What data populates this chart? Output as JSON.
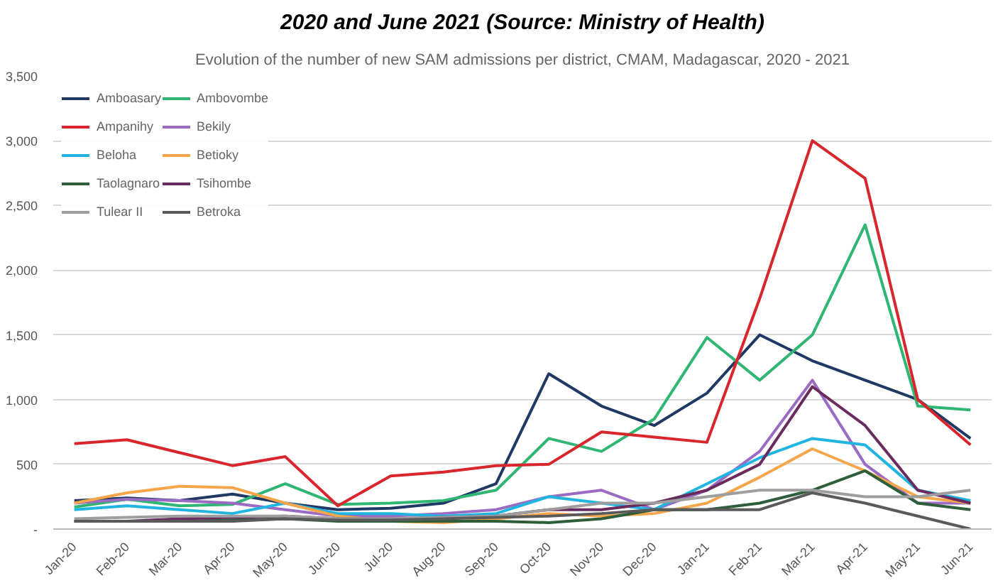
{
  "chart_data": {
    "type": "line",
    "title": "2020 and June 2021 (Source: Ministry of Health)",
    "subtitle": "Evolution of the number of new SAM admissions per district, CMAM, Madagascar, 2020 - 2021",
    "categories": [
      "Jan-20",
      "Feb-20",
      "Mar-20",
      "Apr-20",
      "May-20",
      "Jun-20",
      "Jul-20",
      "Aug-20",
      "Sep-20",
      "Oct-20",
      "Nov-20",
      "Dec-20",
      "Jan-21",
      "Feb-21",
      "Mar-21",
      "Apr-21",
      "May-21",
      "Jun-21"
    ],
    "series": [
      {
        "name": "Amboasary",
        "color": "#1f3864",
        "values": [
          220,
          240,
          220,
          270,
          200,
          150,
          160,
          200,
          350,
          1200,
          950,
          800,
          1050,
          1500,
          1300,
          1150,
          1000,
          700
        ]
      },
      {
        "name": "Ambovombe",
        "color": "#2fb673",
        "values": [
          170,
          230,
          180,
          190,
          350,
          190,
          200,
          220,
          300,
          700,
          600,
          850,
          1480,
          1150,
          1500,
          2350,
          950,
          920
        ]
      },
      {
        "name": "Ampanihy",
        "color": "#d9262c",
        "values": [
          660,
          690,
          590,
          490,
          560,
          180,
          410,
          440,
          490,
          500,
          750,
          710,
          670,
          1780,
          3000,
          2710,
          1000,
          650
        ]
      },
      {
        "name": "Bekily",
        "color": "#9b6bc4",
        "values": [
          200,
          230,
          220,
          200,
          150,
          100,
          100,
          120,
          150,
          250,
          300,
          150,
          300,
          600,
          1150,
          500,
          200,
          200
        ]
      },
      {
        "name": "Beloha",
        "color": "#1fb5e0",
        "values": [
          150,
          180,
          150,
          120,
          200,
          120,
          120,
          100,
          120,
          250,
          200,
          150,
          350,
          550,
          700,
          650,
          300,
          220
        ]
      },
      {
        "name": "Betioky",
        "color": "#f5a54a",
        "values": [
          200,
          280,
          330,
          320,
          200,
          100,
          60,
          50,
          80,
          120,
          100,
          120,
          200,
          400,
          620,
          450,
          250,
          200
        ]
      },
      {
        "name": "Taolagnaro",
        "color": "#2e5e3a",
        "values": [
          60,
          60,
          60,
          70,
          80,
          60,
          60,
          60,
          60,
          50,
          80,
          150,
          150,
          200,
          300,
          450,
          200,
          150
        ]
      },
      {
        "name": "Tsihombe",
        "color": "#6a2c5e",
        "values": [
          60,
          60,
          80,
          90,
          100,
          80,
          80,
          90,
          100,
          150,
          150,
          200,
          300,
          500,
          1100,
          800,
          300,
          200
        ]
      },
      {
        "name": "Tulear II",
        "color": "#9e9e9e",
        "values": [
          80,
          90,
          100,
          100,
          100,
          80,
          80,
          90,
          100,
          150,
          200,
          200,
          250,
          300,
          300,
          250,
          250,
          300
        ]
      },
      {
        "name": "Betroka",
        "color": "#5a5a5a",
        "values": [
          60,
          60,
          60,
          60,
          80,
          70,
          70,
          80,
          90,
          100,
          120,
          150,
          150,
          150,
          280,
          200,
          100,
          0
        ]
      }
    ],
    "ylim": [
      0,
      3500
    ],
    "yticks": [
      {
        "value": 0,
        "label": "-"
      },
      {
        "value": 500,
        "label": "500"
      },
      {
        "value": 1000,
        "label": "1,000"
      },
      {
        "value": 1500,
        "label": "1,500"
      },
      {
        "value": 2000,
        "label": "2,000"
      },
      {
        "value": 2500,
        "label": "2,500"
      },
      {
        "value": 3000,
        "label": "3,000"
      },
      {
        "value": 3500,
        "label": "3,500"
      }
    ],
    "grid": "y",
    "legend": "top left",
    "marker": "none",
    "line_style": "solid"
  }
}
